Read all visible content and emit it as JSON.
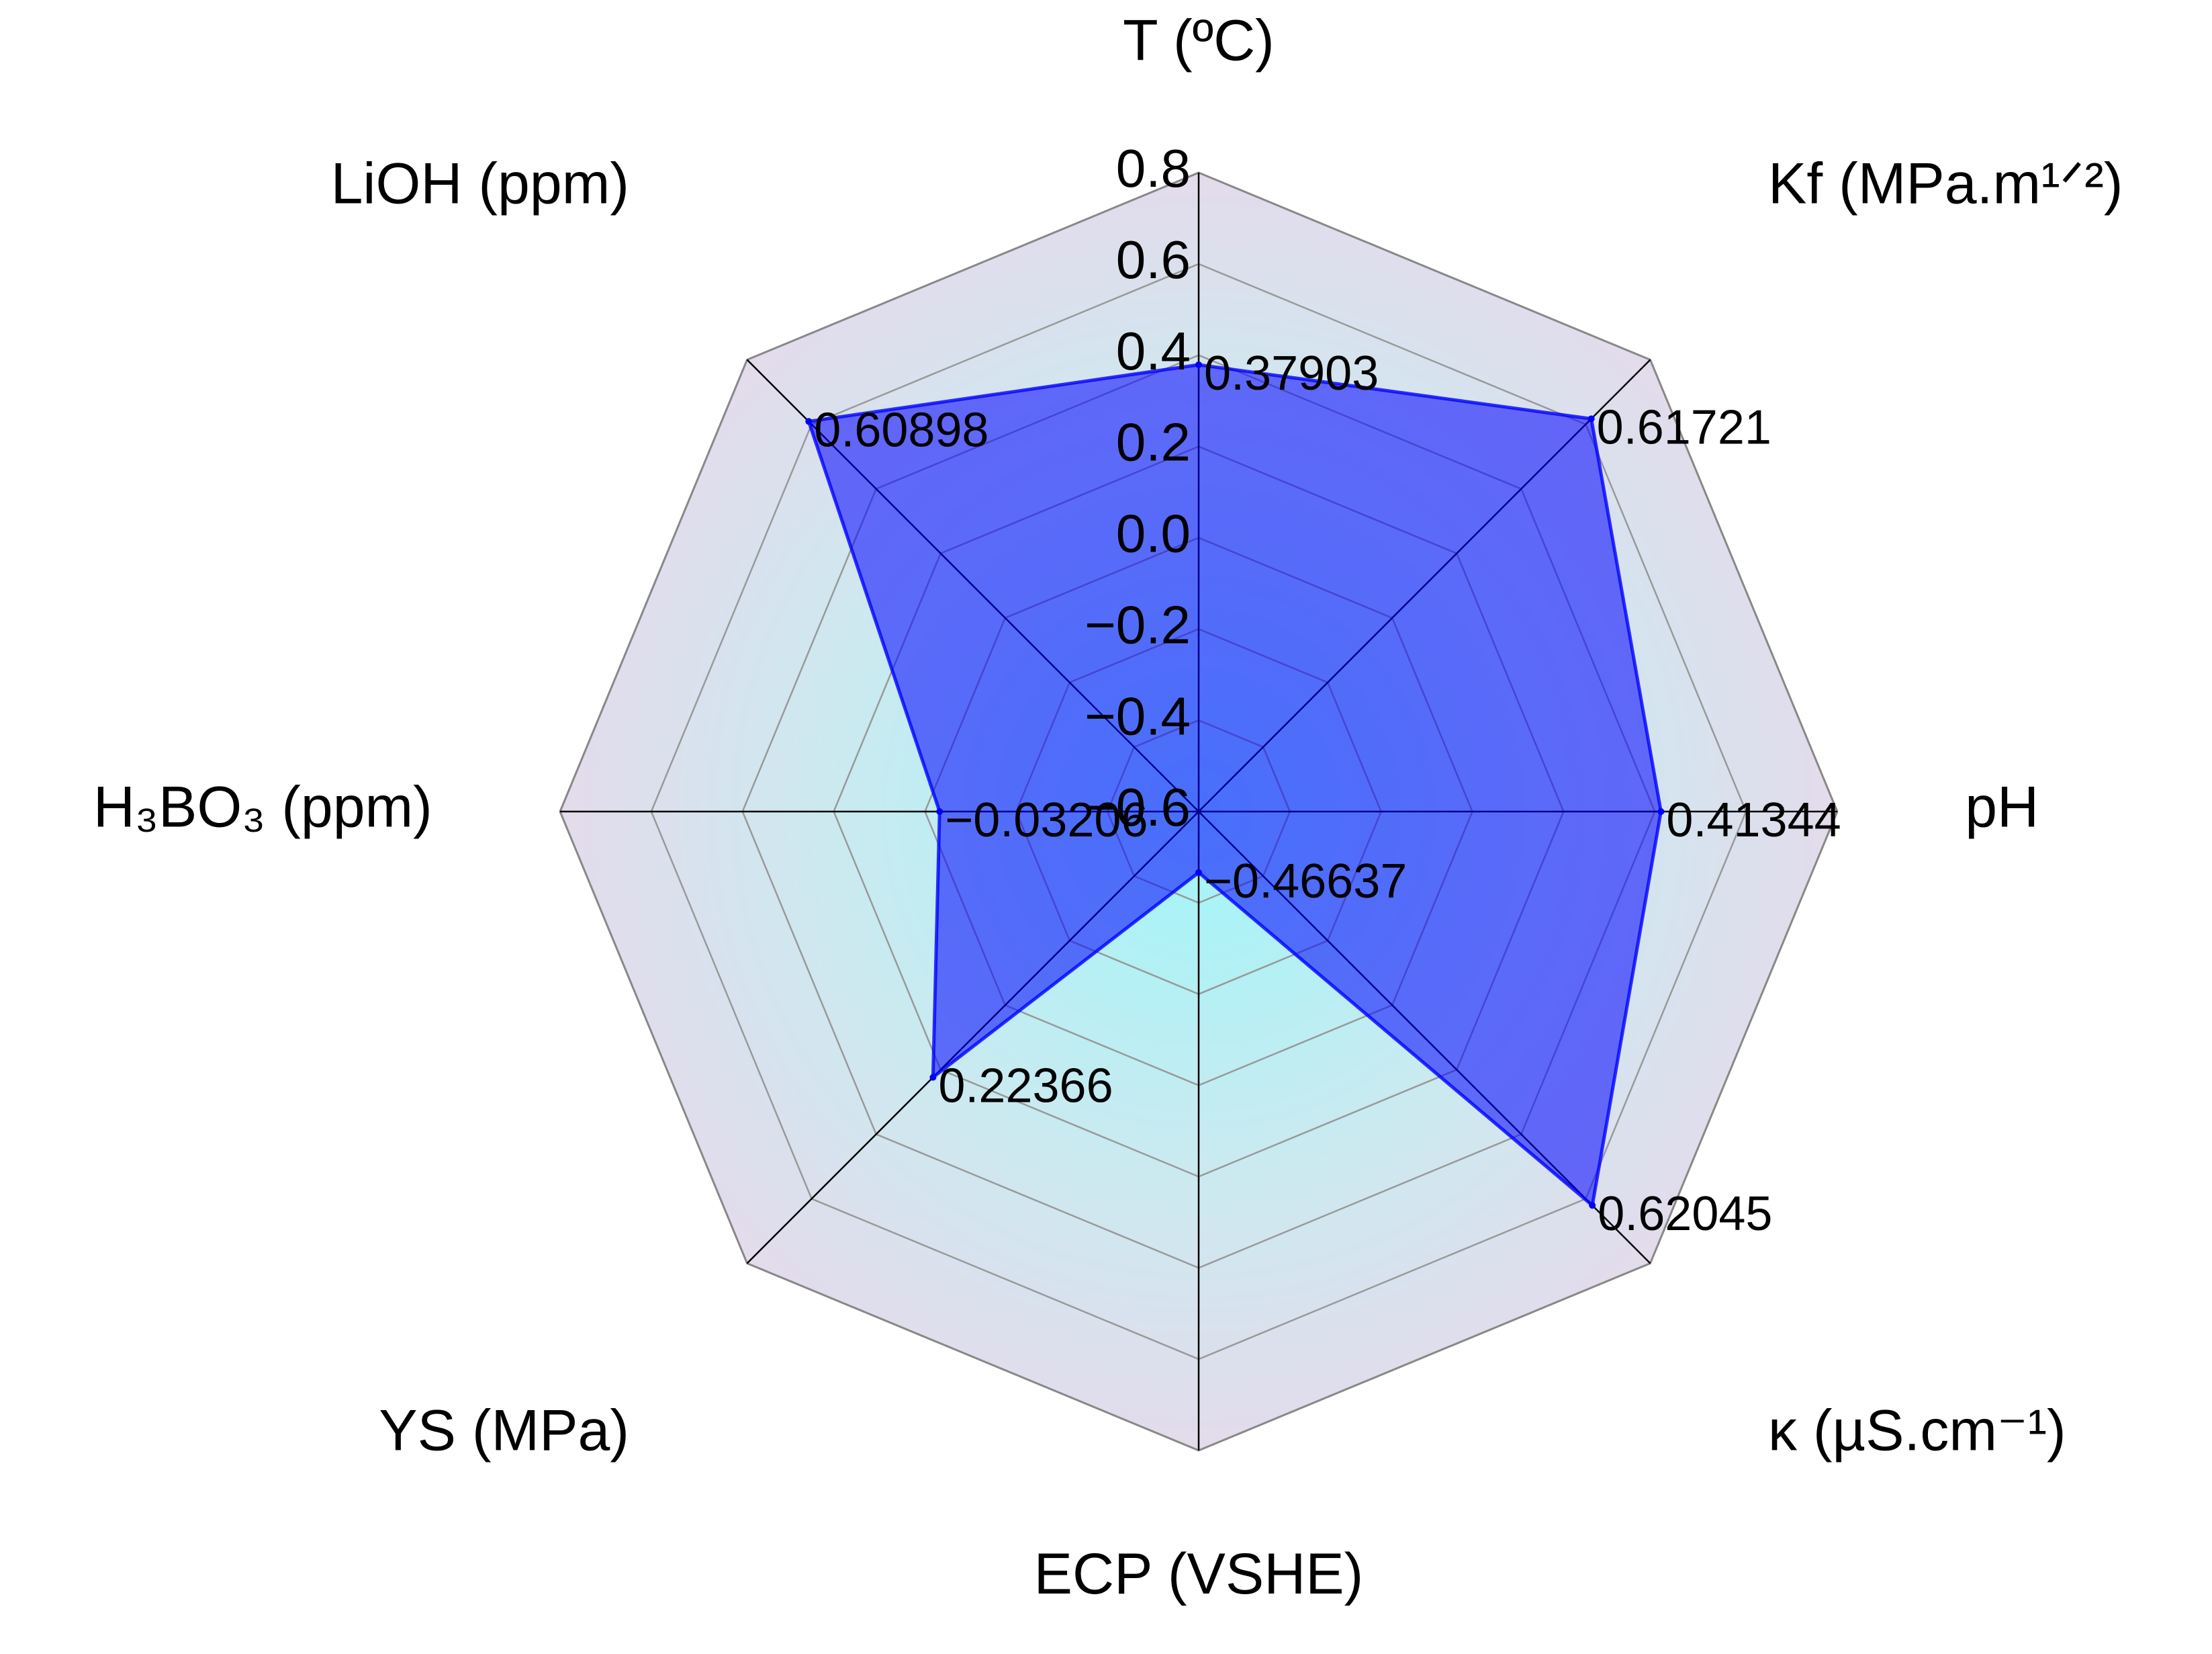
{
  "chart_data": {
    "type": "radar",
    "categories": [
      "T (ºC)",
      "Kf (MPa.m¹ᐟ²)",
      "pH",
      "κ  (µS.cm⁻¹)",
      "ECP  (VSHE)",
      "YS (MPa)",
      "H₃BO₃ (ppm)",
      "LiOH (ppm)"
    ],
    "values": [
      0.37903,
      0.61721,
      0.41344,
      0.62045,
      -0.46637,
      0.22366,
      -0.03206,
      0.60898
    ],
    "value_labels": [
      "0.37903",
      "0.61721",
      "0.41344",
      "0.62045",
      "−0.46637",
      "0.22366",
      "−0.03206",
      "0.60898"
    ],
    "color": "#0000ff",
    "rlim": [
      -0.6,
      0.8
    ],
    "rticks": [
      {
        "value": -0.6,
        "label": "−0.6"
      },
      {
        "value": -0.4,
        "label": "−0.4"
      },
      {
        "value": -0.2,
        "label": "−0.2"
      },
      {
        "value": 0.0,
        "label": "0.0"
      },
      0.2,
      0.4,
      0.6,
      0.8
    ],
    "grid": true
  }
}
